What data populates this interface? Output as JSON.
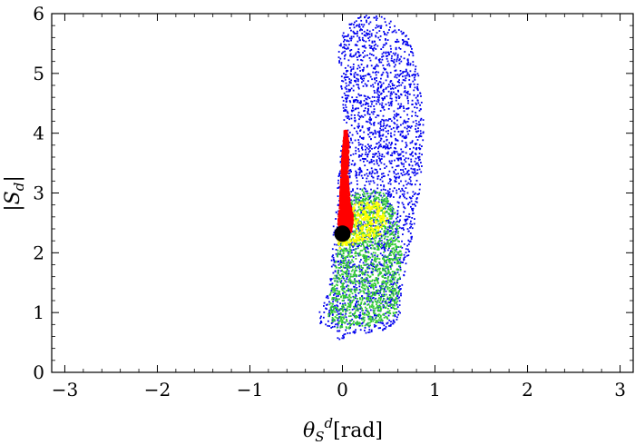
{
  "chart_data": {
    "type": "scatter",
    "xlabel": {
      "base": "θ",
      "sub": "S",
      "sup": "d",
      "suffix": "[rad]"
    },
    "ylabel": {
      "prefix": "|",
      "base": "S",
      "sub": "d",
      "suffix": "|"
    },
    "xlim": [
      -3.14159,
      3.14159
    ],
    "ylim": [
      0,
      6
    ],
    "x_ticks": [
      -3,
      -2,
      -1,
      0,
      1,
      2,
      3
    ],
    "x_tick_labels": [
      "−3",
      "−2",
      "−1",
      "0",
      "1",
      "2",
      "3"
    ],
    "y_ticks": [
      0,
      1,
      2,
      3,
      4,
      5,
      6
    ],
    "y_tick_labels": [
      "0",
      "1",
      "2",
      "3",
      "4",
      "5",
      "6"
    ],
    "grid": false,
    "frame": "box",
    "series": [
      {
        "color": "#0000ee",
        "density": "dense",
        "approx_region": {
          "x_range": [
            -0.28,
            0.9
          ],
          "y_range": [
            0.5,
            6.0
          ],
          "outline": [
            [
              -0.05,
              0.52
            ],
            [
              0.1,
              0.62
            ],
            [
              0.5,
              0.72
            ],
            [
              0.62,
              0.9
            ],
            [
              0.65,
              1.4
            ],
            [
              0.72,
              2.0
            ],
            [
              0.82,
              2.8
            ],
            [
              0.86,
              3.5
            ],
            [
              0.88,
              4.2
            ],
            [
              0.82,
              5.0
            ],
            [
              0.72,
              5.6
            ],
            [
              0.5,
              5.95
            ],
            [
              0.25,
              5.98
            ],
            [
              0.05,
              5.85
            ],
            [
              -0.05,
              5.4
            ],
            [
              -0.02,
              4.8
            ],
            [
              0.02,
              4.3
            ],
            [
              -0.02,
              3.7
            ],
            [
              -0.06,
              3.0
            ],
            [
              -0.1,
              2.4
            ],
            [
              -0.12,
              1.8
            ],
            [
              -0.14,
              1.4
            ],
            [
              -0.25,
              1.0
            ],
            [
              -0.24,
              0.82
            ],
            [
              -0.1,
              0.72
            ],
            [
              -0.06,
              0.6
            ]
          ]
        }
      },
      {
        "color": "#33cc33",
        "density": "medium",
        "approx_region": {
          "x_range": [
            -0.18,
            0.72
          ],
          "y_range": [
            0.7,
            3.1
          ],
          "outline": [
            [
              -0.02,
              0.72
            ],
            [
              0.3,
              0.78
            ],
            [
              0.58,
              0.95
            ],
            [
              0.62,
              1.4
            ],
            [
              0.64,
              2.0
            ],
            [
              0.6,
              2.6
            ],
            [
              0.45,
              3.0
            ],
            [
              0.2,
              3.08
            ],
            [
              0.05,
              2.9
            ],
            [
              -0.02,
              2.4
            ],
            [
              -0.08,
              1.8
            ],
            [
              -0.14,
              1.3
            ],
            [
              -0.16,
              0.95
            ],
            [
              -0.1,
              0.78
            ]
          ]
        }
      },
      {
        "color": "#ffff00",
        "density": "sparse",
        "approx_region": {
          "x_range": [
            -0.08,
            0.55
          ],
          "y_range": [
            2.0,
            3.0
          ],
          "outline": [
            [
              -0.06,
              2.05
            ],
            [
              0.15,
              2.15
            ],
            [
              0.42,
              2.3
            ],
            [
              0.5,
              2.55
            ],
            [
              0.4,
              2.85
            ],
            [
              0.18,
              2.85
            ],
            [
              0.02,
              2.7
            ],
            [
              -0.04,
              2.45
            ]
          ]
        }
      },
      {
        "color": "#ff0000",
        "density": "dense",
        "approx_region": {
          "x_range": [
            -0.05,
            0.12
          ],
          "y_range": [
            2.3,
            4.05
          ],
          "outline": [
            [
              -0.03,
              2.3
            ],
            [
              0.1,
              2.35
            ],
            [
              0.12,
              2.6
            ],
            [
              0.08,
              2.85
            ],
            [
              0.06,
              3.3
            ],
            [
              0.07,
              3.8
            ],
            [
              0.05,
              4.05
            ],
            [
              0.02,
              4.05
            ],
            [
              0.0,
              3.7
            ],
            [
              -0.02,
              3.2
            ],
            [
              -0.03,
              2.8
            ],
            [
              -0.05,
              2.5
            ]
          ]
        }
      }
    ],
    "highlight_point": {
      "x": 0.0,
      "y": 2.32,
      "color": "#000000"
    }
  }
}
